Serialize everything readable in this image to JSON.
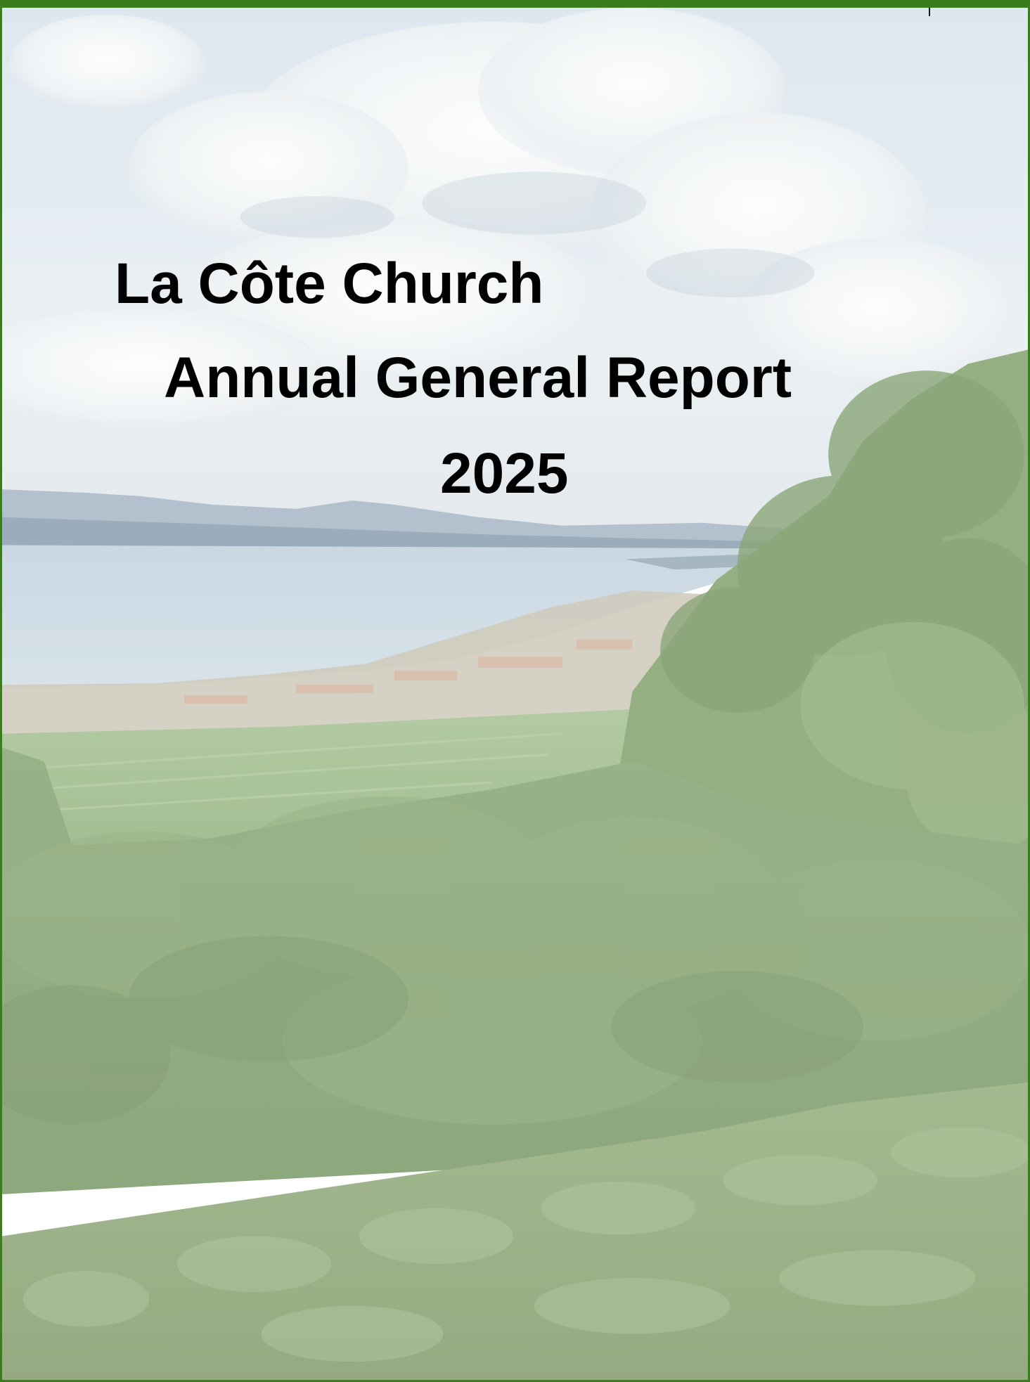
{
  "document": {
    "title_line_1": "La Côte Church",
    "title_line_2": "Annual General Report",
    "title_line_3": "2025"
  },
  "cover_photo": {
    "description_icon": "landscape-photo",
    "scene_colors": {
      "sky": "#dfe8ef",
      "lake": "#c9d8e3",
      "mountains": "#9fb3c2",
      "fields": "#9fbf86",
      "trees": "#7f9f6a",
      "hedge": "#8fab76"
    }
  },
  "frame": {
    "border_color": "#3b7d1e"
  }
}
